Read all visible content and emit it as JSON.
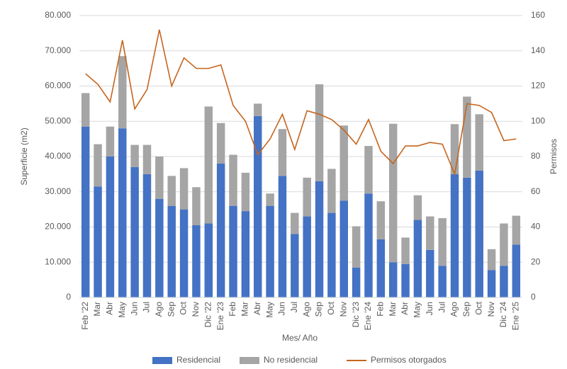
{
  "chart_data": {
    "type": "combo",
    "x_label": "Mes/ Año",
    "y_label": "Superficie (m2)",
    "y2_label": "Permisos",
    "categories": [
      "Feb '22",
      "Mar",
      "Abr",
      "May",
      "Jun",
      "Jul",
      "Ago",
      "Sep",
      "Oct",
      "Nov",
      "Dic '22",
      "Ene '23",
      "Feb",
      "Mar",
      "Abr",
      "May",
      "Jun",
      "Jul",
      "Ago",
      "Sep",
      "Oct",
      "Nov",
      "Dic '23",
      "Ene '24",
      "Feb",
      "Mar",
      "Abr",
      "May",
      "Jun",
      "Jul",
      "Ago",
      "Sep",
      "Oct",
      "Nov",
      "Dic '24",
      "Ene '25"
    ],
    "series": [
      {
        "name": "Residencial",
        "type": "bar",
        "stacked": true,
        "color": "#4472c4",
        "values": [
          48500,
          31500,
          40000,
          48000,
          37000,
          35000,
          28000,
          26000,
          25000,
          20500,
          21000,
          38000,
          26000,
          24500,
          51500,
          26000,
          34500,
          18000,
          23000,
          33000,
          24000,
          27500,
          8500,
          29500,
          16500,
          10000,
          9500,
          22000,
          13500,
          9000,
          35000,
          34000,
          36000,
          7800,
          9000,
          15000
        ]
      },
      {
        "name": "No residencial",
        "type": "bar",
        "stacked": true,
        "color": "#a5a5a5",
        "values": [
          9500,
          12000,
          8500,
          20500,
          6300,
          8300,
          12000,
          8500,
          11700,
          10800,
          33200,
          11500,
          14500,
          10900,
          3500,
          3500,
          13300,
          6000,
          11000,
          27500,
          12500,
          21300,
          11700,
          13500,
          10800,
          39300,
          7500,
          7000,
          9500,
          13500,
          14200,
          23000,
          16000,
          5900,
          12000,
          8200
        ]
      },
      {
        "name": "Permisos otorgados",
        "type": "line",
        "axis": "y2",
        "color": "#c5651f",
        "values": [
          127,
          121,
          111,
          146,
          107,
          118,
          152,
          120,
          136,
          130,
          130,
          132,
          109,
          100,
          81,
          90,
          104,
          84,
          106,
          104,
          101,
          95,
          87,
          101,
          83,
          76,
          86,
          86,
          88,
          87,
          70,
          110,
          109,
          105,
          89,
          90
        ]
      }
    ],
    "ylim": [
      0,
      80000
    ],
    "yticks": [
      0,
      {
        "value": 10000,
        "label": "10.000"
      },
      {
        "value": 20000,
        "label": "20.000"
      },
      {
        "value": 30000,
        "label": "30.000"
      },
      {
        "value": 40000,
        "label": "40.000"
      },
      {
        "value": 50000,
        "label": "50.000"
      },
      {
        "value": 60000,
        "label": "60.000"
      },
      {
        "value": 70000,
        "label": "70.000"
      },
      {
        "value": 80000,
        "label": "80.000"
      }
    ],
    "y2lim": [
      0,
      160
    ],
    "y2ticks": [
      0,
      20,
      40,
      60,
      80,
      100,
      120,
      140,
      160
    ],
    "grid": true,
    "legend": "bottom"
  }
}
